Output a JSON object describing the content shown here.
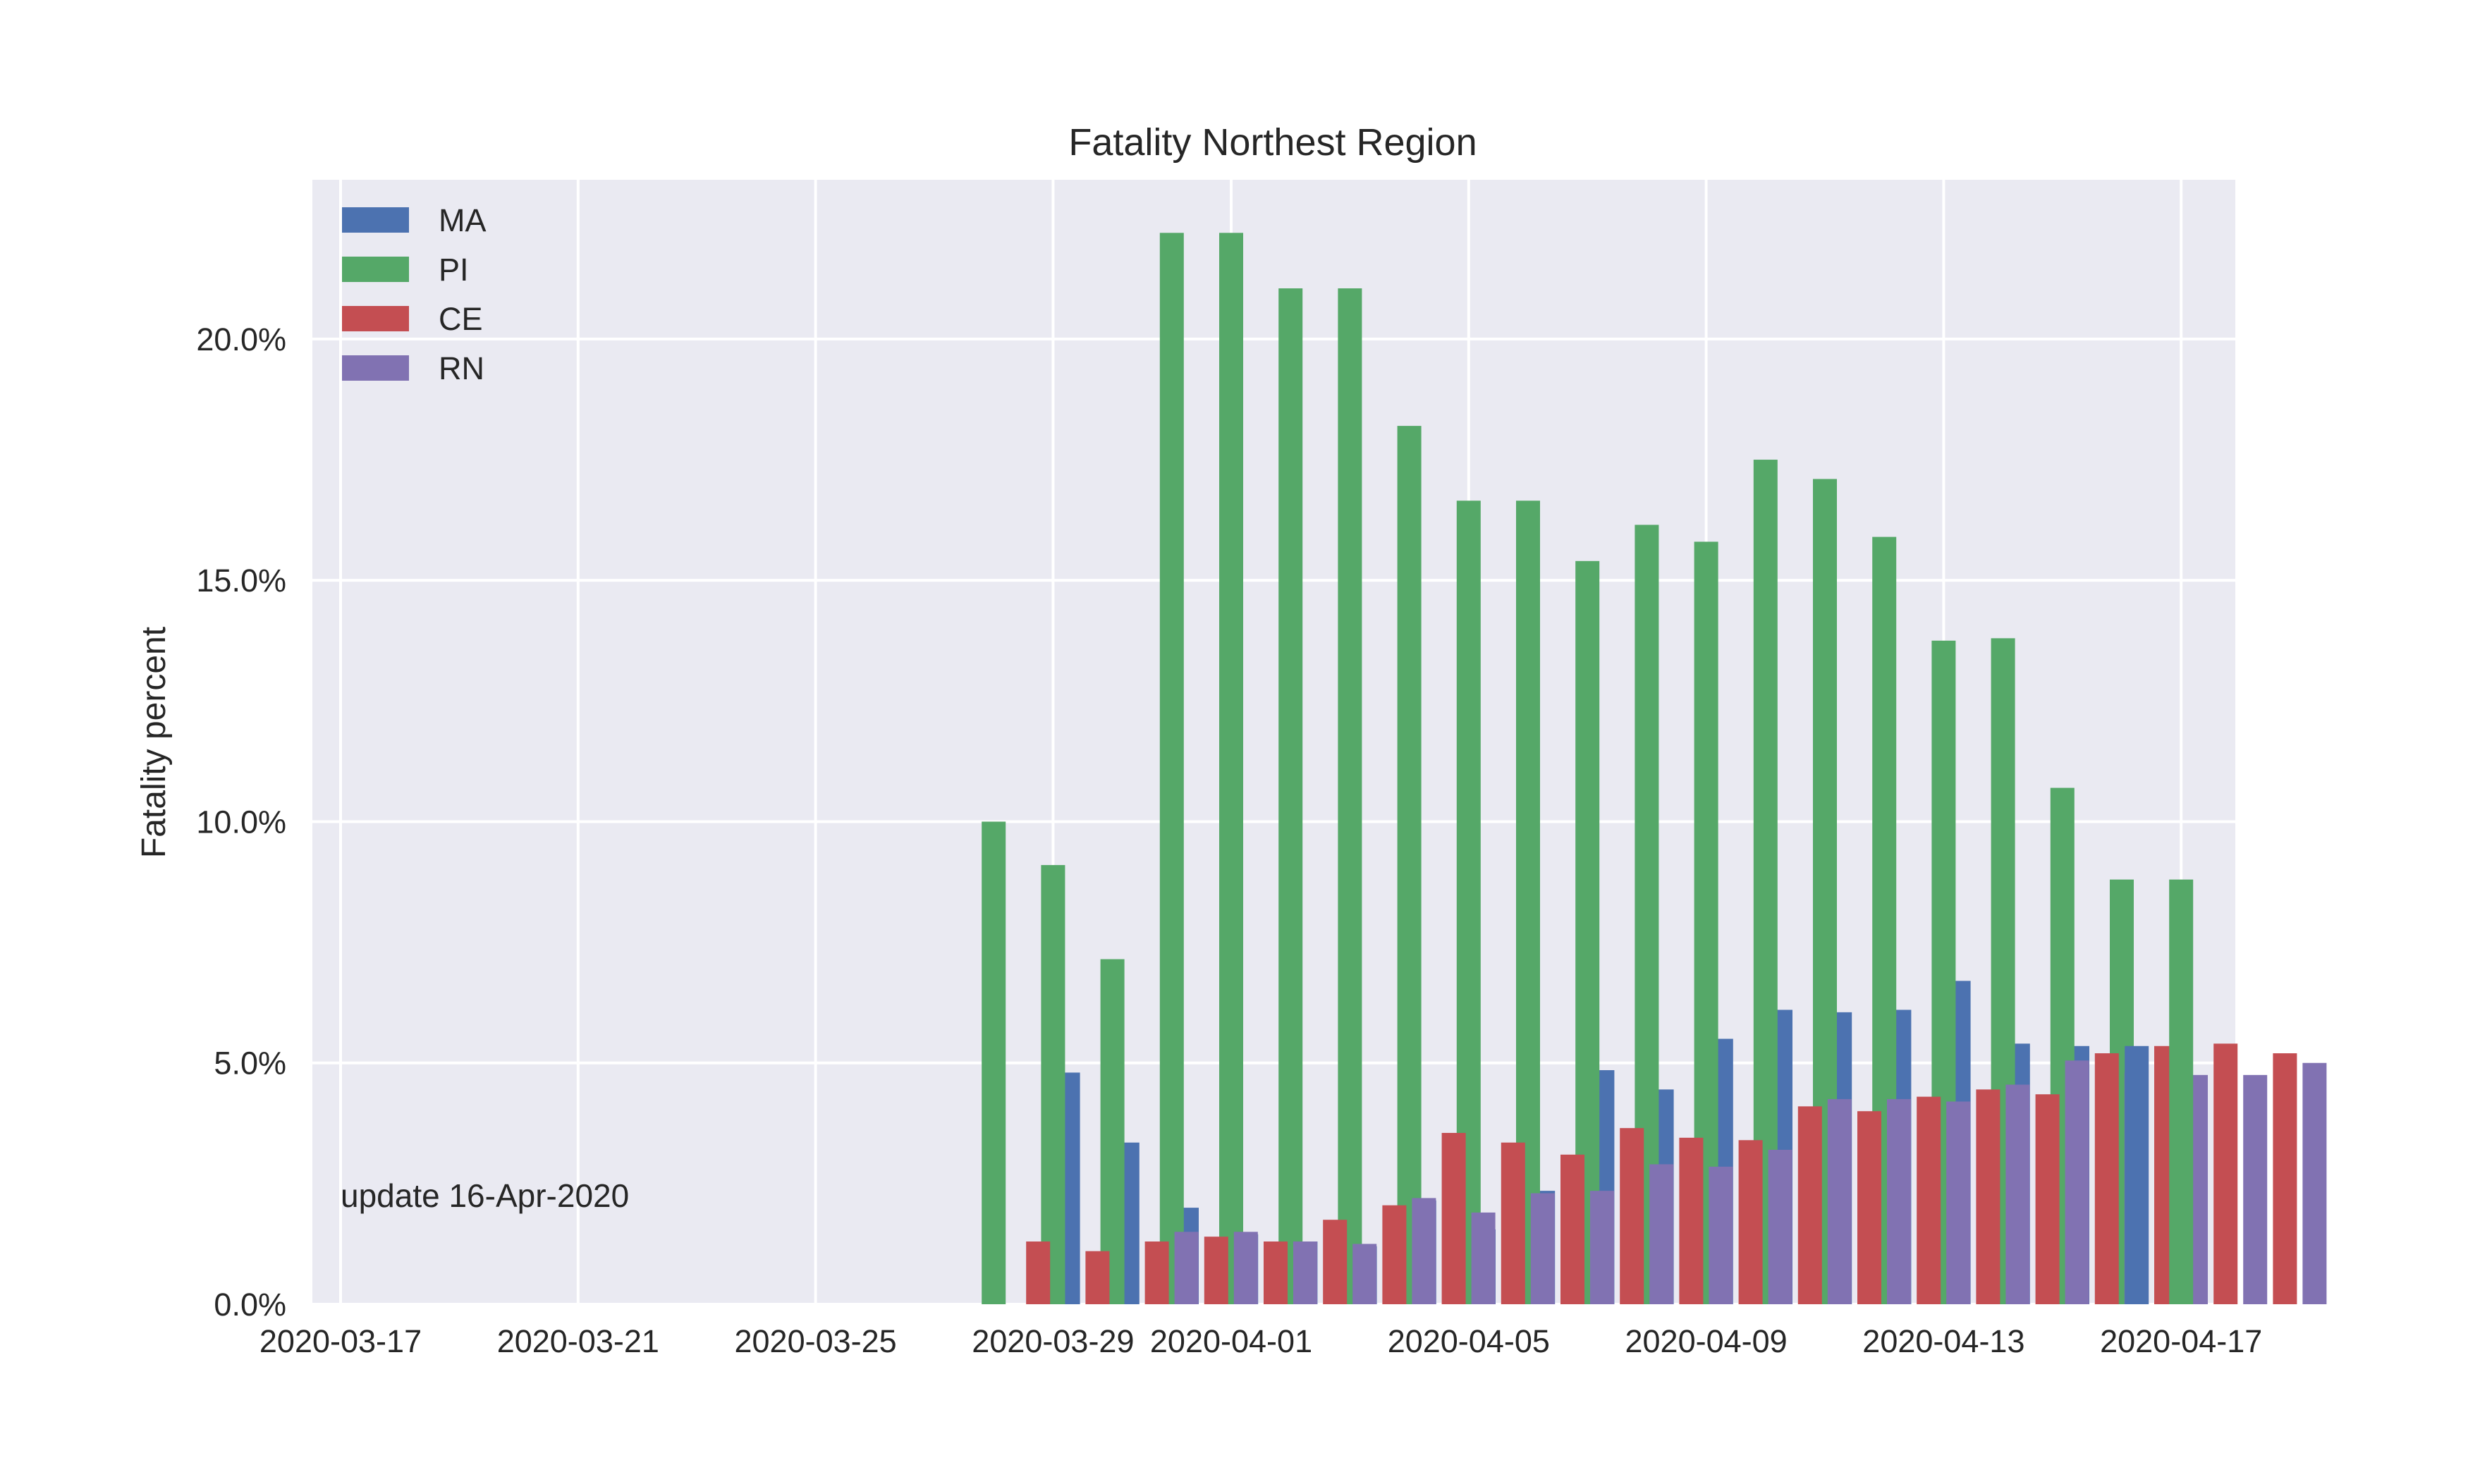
{
  "chart_data": {
    "type": "bar",
    "title": "Fatality Northest Region",
    "xlabel": "",
    "ylabel": "Fatality percent",
    "annotation": "update 16-Apr-2020",
    "x_start": "2020-03-17",
    "x_ticks": [
      "2020-03-17",
      "2020-03-21",
      "2020-03-25",
      "2020-03-29",
      "2020-04-01",
      "2020-04-05",
      "2020-04-09",
      "2020-04-13",
      "2020-04-17"
    ],
    "ylim": [
      0,
      23.3
    ],
    "y_ticks": [
      "0.0%",
      "5.0%",
      "10.0%",
      "15.0%",
      "20.0%"
    ],
    "y_tick_values": [
      0,
      5,
      10,
      15,
      20
    ],
    "grid": true,
    "legend_position": "top-left",
    "dates": [
      "2020-03-28",
      "2020-03-29",
      "2020-03-30",
      "2020-03-31",
      "2020-04-01",
      "2020-04-02",
      "2020-04-03",
      "2020-04-04",
      "2020-04-05",
      "2020-04-06",
      "2020-04-07",
      "2020-04-08",
      "2020-04-09",
      "2020-04-10",
      "2020-04-11",
      "2020-04-12",
      "2020-04-13",
      "2020-04-14",
      "2020-04-15",
      "2020-04-16"
    ],
    "series": [
      {
        "name": "MA",
        "color": "#4C72B0",
        "values": [
          0,
          0,
          4.8,
          3.35,
          2.0,
          1.45,
          1.3,
          1.2,
          2.15,
          1.55,
          2.35,
          4.85,
          4.45,
          5.5,
          6.1,
          6.05,
          6.1,
          6.7,
          5.4,
          5.35
        ]
      },
      {
        "name": "PI",
        "color": "#55A868",
        "values": [
          10.0,
          9.1,
          7.15,
          22.2,
          22.2,
          21.05,
          21.05,
          18.2,
          16.65,
          16.65,
          15.4,
          16.15,
          15.8,
          17.5,
          17.1,
          15.9,
          13.75,
          13.8,
          10.7,
          8.8
        ]
      },
      {
        "name": "CE",
        "color": "#C44E52",
        "values": [
          1.3,
          1.1,
          1.3,
          1.4,
          1.3,
          1.75,
          2.05,
          3.55,
          3.35,
          3.1,
          3.65,
          3.45,
          3.4,
          4.1,
          4.0,
          4.3,
          4.45,
          4.35,
          5.2,
          5.35
        ]
      },
      {
        "name": "RN",
        "color": "#8172B2",
        "values": [
          0,
          0,
          1.5,
          1.5,
          1.3,
          1.25,
          2.2,
          1.9,
          2.3,
          2.35,
          2.9,
          2.85,
          3.2,
          4.25,
          4.25,
          4.2,
          4.55,
          5.05,
          4.8,
          4.75
        ]
      }
    ],
    "extra_bars": [
      {
        "series": "PI",
        "date": "2020-04-17",
        "value": 8.8
      },
      {
        "series": "CE",
        "date": "2020-04-17",
        "value": 5.4
      },
      {
        "series": "CE",
        "date": "2020-04-18",
        "value": 5.2
      },
      {
        "series": "RN",
        "date": "2020-04-17",
        "value": 4.75
      },
      {
        "series": "RN",
        "date": "2020-04-18",
        "value": 5.0
      },
      {
        "series": "MA",
        "date": "2020-04-17",
        "value": 5.35
      }
    ]
  }
}
